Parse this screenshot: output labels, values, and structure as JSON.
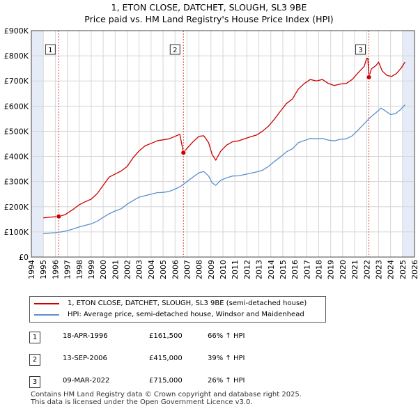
{
  "title_line1": "1, ETON CLOSE, DATCHET, SLOUGH, SL3 9BE",
  "title_line2": "Price paid vs. HM Land Registry's House Price Index (HPI)",
  "chart_data": {
    "type": "line",
    "title": "1, ETON CLOSE, DATCHET, SLOUGH, SL3 9BE — Price paid vs. HM Land Registry's House Price Index (HPI)",
    "xlabel": "",
    "ylabel": "",
    "xlim": [
      1994,
      2026
    ],
    "ylim": [
      0,
      900000
    ],
    "x_ticks": [
      1994,
      1995,
      1996,
      1997,
      1998,
      1999,
      2000,
      2001,
      2002,
      2003,
      2004,
      2005,
      2006,
      2007,
      2008,
      2009,
      2010,
      2011,
      2012,
      2013,
      2014,
      2015,
      2016,
      2017,
      2018,
      2019,
      2020,
      2021,
      2022,
      2023,
      2024,
      2025,
      2026
    ],
    "y_ticks": [
      0,
      100000,
      200000,
      300000,
      400000,
      500000,
      600000,
      700000,
      800000,
      900000
    ],
    "y_tick_labels": [
      "£0",
      "£100K",
      "£200K",
      "£300K",
      "£400K",
      "£500K",
      "£600K",
      "£700K",
      "£800K",
      "£900K"
    ],
    "grid": true,
    "colors": {
      "property": "#cc0000",
      "hpi": "#5b8fcc",
      "shade": "#e6ecf7",
      "grid": "#d6d6d6",
      "vline": "#dd4444"
    },
    "shaded_ranges": [
      [
        1994,
        1995
      ],
      [
        2025,
        2026
      ]
    ],
    "series": [
      {
        "name": "1, ETON CLOSE, DATCHET, SLOUGH, SL3 9BE (semi-detached house)",
        "color": "#cc0000",
        "points": [
          [
            1995.0,
            156000
          ],
          [
            1995.5,
            158000
          ],
          [
            1996.0,
            160000
          ],
          [
            1996.3,
            161500
          ],
          [
            1996.8,
            168000
          ],
          [
            1997.5,
            190000
          ],
          [
            1998.0,
            208000
          ],
          [
            1998.5,
            220000
          ],
          [
            1999.0,
            230000
          ],
          [
            1999.5,
            252000
          ],
          [
            2000.0,
            285000
          ],
          [
            2000.5,
            318000
          ],
          [
            2001.0,
            330000
          ],
          [
            2001.5,
            342000
          ],
          [
            2002.0,
            360000
          ],
          [
            2002.5,
            395000
          ],
          [
            2003.0,
            422000
          ],
          [
            2003.5,
            442000
          ],
          [
            2004.0,
            452000
          ],
          [
            2004.5,
            462000
          ],
          [
            2005.0,
            466000
          ],
          [
            2005.5,
            470000
          ],
          [
            2006.0,
            480000
          ],
          [
            2006.4,
            488000
          ],
          [
            2006.7,
            415000
          ],
          [
            2007.0,
            432000
          ],
          [
            2007.5,
            458000
          ],
          [
            2008.0,
            480000
          ],
          [
            2008.4,
            482000
          ],
          [
            2008.8,
            455000
          ],
          [
            2009.1,
            408000
          ],
          [
            2009.4,
            385000
          ],
          [
            2009.8,
            420000
          ],
          [
            2010.3,
            445000
          ],
          [
            2010.8,
            458000
          ],
          [
            2011.3,
            462000
          ],
          [
            2011.8,
            470000
          ],
          [
            2012.3,
            478000
          ],
          [
            2012.8,
            485000
          ],
          [
            2013.3,
            500000
          ],
          [
            2013.8,
            520000
          ],
          [
            2014.3,
            548000
          ],
          [
            2014.8,
            580000
          ],
          [
            2015.3,
            610000
          ],
          [
            2015.8,
            628000
          ],
          [
            2016.3,
            668000
          ],
          [
            2016.8,
            690000
          ],
          [
            2017.3,
            706000
          ],
          [
            2017.8,
            700000
          ],
          [
            2018.3,
            706000
          ],
          [
            2018.8,
            690000
          ],
          [
            2019.3,
            682000
          ],
          [
            2019.8,
            688000
          ],
          [
            2020.3,
            690000
          ],
          [
            2020.8,
            706000
          ],
          [
            2021.3,
            733000
          ],
          [
            2021.8,
            758000
          ],
          [
            2022.0,
            790000
          ],
          [
            2022.1,
            790000
          ],
          [
            2022.19,
            715000
          ],
          [
            2022.4,
            748000
          ],
          [
            2022.8,
            762000
          ],
          [
            2023.0,
            775000
          ],
          [
            2023.3,
            740000
          ],
          [
            2023.7,
            722000
          ],
          [
            2024.1,
            718000
          ],
          [
            2024.5,
            730000
          ],
          [
            2024.9,
            752000
          ],
          [
            2025.2,
            775000
          ]
        ]
      },
      {
        "name": "HPI: Average price, semi-detached house, Windsor and Maidenhead",
        "color": "#5b8fcc",
        "points": [
          [
            1995.0,
            93000
          ],
          [
            1995.5,
            95000
          ],
          [
            1996.0,
            97000
          ],
          [
            1996.5,
            100000
          ],
          [
            1997.0,
            105000
          ],
          [
            1997.5,
            112000
          ],
          [
            1998.0,
            120000
          ],
          [
            1998.5,
            126000
          ],
          [
            1999.0,
            132000
          ],
          [
            1999.5,
            142000
          ],
          [
            2000.0,
            158000
          ],
          [
            2000.5,
            172000
          ],
          [
            2001.0,
            183000
          ],
          [
            2001.5,
            192000
          ],
          [
            2002.0,
            210000
          ],
          [
            2002.5,
            225000
          ],
          [
            2003.0,
            238000
          ],
          [
            2003.5,
            244000
          ],
          [
            2004.0,
            250000
          ],
          [
            2004.5,
            256000
          ],
          [
            2005.0,
            257000
          ],
          [
            2005.5,
            261000
          ],
          [
            2006.0,
            270000
          ],
          [
            2006.5,
            282000
          ],
          [
            2007.0,
            300000
          ],
          [
            2007.5,
            318000
          ],
          [
            2008.0,
            335000
          ],
          [
            2008.4,
            340000
          ],
          [
            2008.8,
            322000
          ],
          [
            2009.1,
            295000
          ],
          [
            2009.4,
            285000
          ],
          [
            2009.8,
            305000
          ],
          [
            2010.3,
            315000
          ],
          [
            2010.8,
            322000
          ],
          [
            2011.3,
            323000
          ],
          [
            2011.8,
            328000
          ],
          [
            2012.3,
            333000
          ],
          [
            2012.8,
            338000
          ],
          [
            2013.3,
            345000
          ],
          [
            2013.8,
            360000
          ],
          [
            2014.3,
            380000
          ],
          [
            2014.8,
            398000
          ],
          [
            2015.3,
            418000
          ],
          [
            2015.8,
            430000
          ],
          [
            2016.3,
            455000
          ],
          [
            2016.8,
            463000
          ],
          [
            2017.3,
            472000
          ],
          [
            2017.8,
            470000
          ],
          [
            2018.3,
            472000
          ],
          [
            2018.8,
            465000
          ],
          [
            2019.3,
            462000
          ],
          [
            2019.8,
            468000
          ],
          [
            2020.3,
            470000
          ],
          [
            2020.8,
            482000
          ],
          [
            2021.3,
            505000
          ],
          [
            2021.8,
            530000
          ],
          [
            2022.3,
            555000
          ],
          [
            2022.8,
            575000
          ],
          [
            2023.2,
            592000
          ],
          [
            2023.6,
            580000
          ],
          [
            2024.0,
            567000
          ],
          [
            2024.4,
            570000
          ],
          [
            2024.8,
            585000
          ],
          [
            2025.2,
            605000
          ]
        ]
      }
    ],
    "annotations": [
      {
        "label": "1",
        "x": 1996.29,
        "y": 161500
      },
      {
        "label": "2",
        "x": 2006.7,
        "y": 415000
      },
      {
        "label": "3",
        "x": 2022.19,
        "y": 715000
      }
    ]
  },
  "legend": {
    "property_label": "1, ETON CLOSE, DATCHET, SLOUGH, SL3 9BE (semi-detached house)",
    "hpi_label": "HPI: Average price, semi-detached house, Windsor and Maidenhead"
  },
  "sales": [
    {
      "num": "1",
      "date": "18-APR-1996",
      "price": "£161,500",
      "hpi": "66% ↑ HPI"
    },
    {
      "num": "2",
      "date": "13-SEP-2006",
      "price": "£415,000",
      "hpi": "39% ↑ HPI"
    },
    {
      "num": "3",
      "date": "09-MAR-2022",
      "price": "£715,000",
      "hpi": "26% ↑ HPI"
    }
  ],
  "footer": {
    "line1": "Contains HM Land Registry data © Crown copyright and database right 2025.",
    "line2": "This data is licensed under the Open Government Licence v3.0."
  }
}
